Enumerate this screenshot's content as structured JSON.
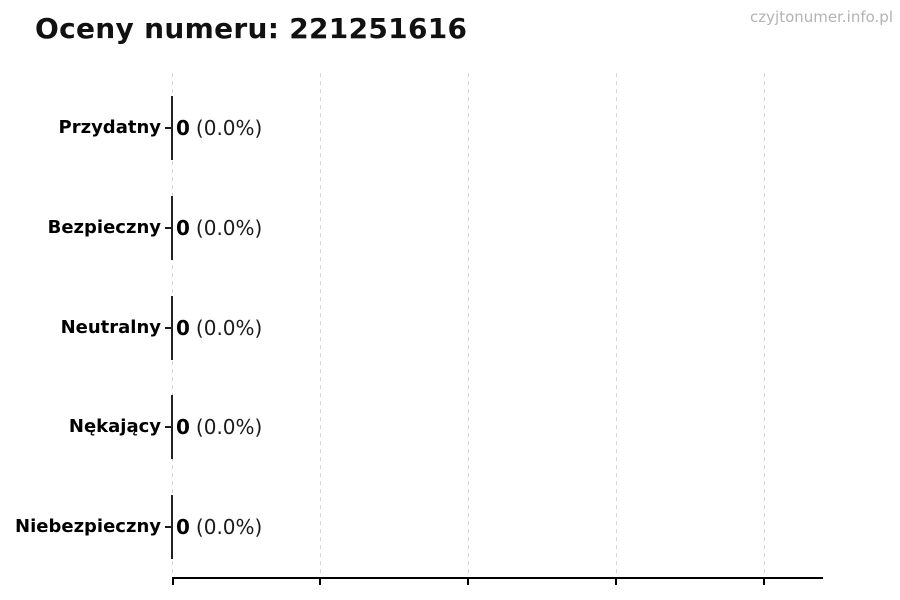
{
  "title": "Oceny numeru: 221251616",
  "watermark": "czyjtonumer.info.pl",
  "chart_data": {
    "type": "bar",
    "orientation": "horizontal",
    "title": "Oceny numeru: 221251616",
    "categories": [
      "Przydatny",
      "Bezpieczny",
      "Neutralny",
      "Nękający",
      "Niebezpieczny"
    ],
    "values": [
      0,
      0,
      0,
      0,
      0
    ],
    "counts": [
      "0",
      "0",
      "0",
      "0",
      "0"
    ],
    "pct_labels": [
      "(0.0%)",
      "(0.0%)",
      "(0.0%)",
      "(0.0%)",
      "(0.0%)"
    ],
    "value_labels": [
      "0 (0.0%)",
      "0 (0.0%)",
      "0 (0.0%)",
      "0 (0.0%)",
      "0 (0.0%)"
    ],
    "xlabel": "",
    "ylabel": "",
    "x_tick_count": 5,
    "x_tick_labels_visible": false,
    "grid": "vertical dashed gridlines at x ticks",
    "legend": "none"
  },
  "colors": {
    "background": "#ffffff",
    "text": "#111111",
    "watermark": "#b3b3b3",
    "gridline": "#d4d4d4",
    "axis": "#000000",
    "bar_edge": "#222222"
  }
}
